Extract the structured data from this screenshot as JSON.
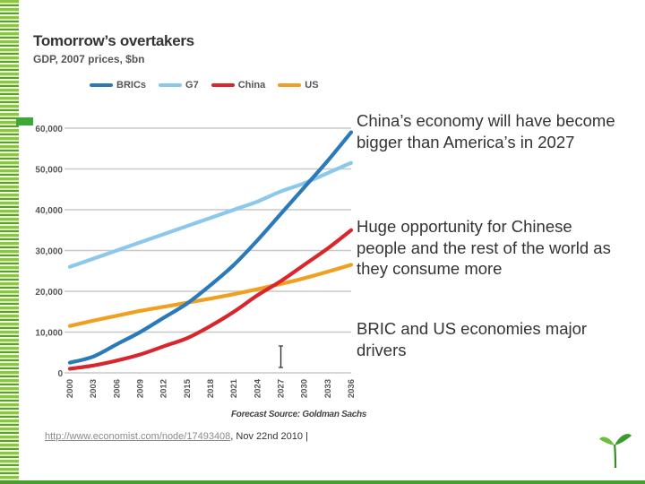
{
  "chart_data": {
    "type": "line",
    "title": "Tomorrow’s overtakers",
    "subtitle": "GDP, 2007 prices, $bn",
    "ylim": [
      0,
      60000
    ],
    "yticks": [
      0,
      10000,
      20000,
      30000,
      40000,
      50000,
      60000
    ],
    "ytick_labels": [
      "0",
      "10,000",
      "20,000",
      "30,000",
      "40,000",
      "50,000",
      "60,000"
    ],
    "xlim": [
      2000,
      2036
    ],
    "xtick_labels": [
      "2000",
      "2003",
      "2006",
      "2009",
      "2012",
      "2015",
      "2018",
      "2021",
      "2024",
      "2027",
      "2030",
      "2033",
      "2036"
    ],
    "forecast_label": "Forecast",
    "source_label": "Source: Goldman Sachs",
    "forecast_marker_year": 2027,
    "series": [
      {
        "name": "BRICs",
        "color": "#2a79b8",
        "x": [
          2000,
          2003,
          2006,
          2009,
          2012,
          2015,
          2018,
          2021,
          2024,
          2027,
          2030,
          2033,
          2036
        ],
        "values": [
          2500,
          4000,
          7000,
          10000,
          13500,
          17000,
          21500,
          26500,
          32500,
          39000,
          45500,
          52000,
          59000
        ]
      },
      {
        "name": "G7",
        "color": "#8cc8ec",
        "x": [
          2000,
          2003,
          2006,
          2009,
          2012,
          2015,
          2018,
          2021,
          2024,
          2027,
          2030,
          2033,
          2036
        ],
        "values": [
          26000,
          28000,
          30000,
          32000,
          34000,
          36000,
          38000,
          40000,
          42000,
          44500,
          46500,
          49000,
          51500
        ]
      },
      {
        "name": "China",
        "color": "#d9262c",
        "x": [
          2000,
          2003,
          2006,
          2009,
          2012,
          2015,
          2018,
          2021,
          2024,
          2027,
          2030,
          2033,
          2036
        ],
        "values": [
          1000,
          1800,
          3000,
          4500,
          6500,
          8500,
          11500,
          15000,
          19000,
          22500,
          26500,
          30500,
          35000
        ]
      },
      {
        "name": "US",
        "color": "#f0a020",
        "x": [
          2000,
          2003,
          2006,
          2009,
          2012,
          2015,
          2018,
          2021,
          2024,
          2027,
          2030,
          2033,
          2036
        ],
        "values": [
          11500,
          12800,
          14000,
          15200,
          16200,
          17200,
          18200,
          19300,
          20500,
          21800,
          23200,
          24800,
          26500
        ]
      }
    ]
  },
  "bullets": [
    "China’s economy will have become bigger than America’s in 2027",
    "Huge opportunity for Chinese people and the rest of the world as they consume more",
    "BRIC and US economies major drivers"
  ],
  "footer": {
    "url": "http://www.economist.com/node/17493408",
    "date_text": ", Nov 22nd 2010 |"
  },
  "colors": {
    "accent_green": "#3aa935",
    "grid": "#c8c8c8"
  }
}
